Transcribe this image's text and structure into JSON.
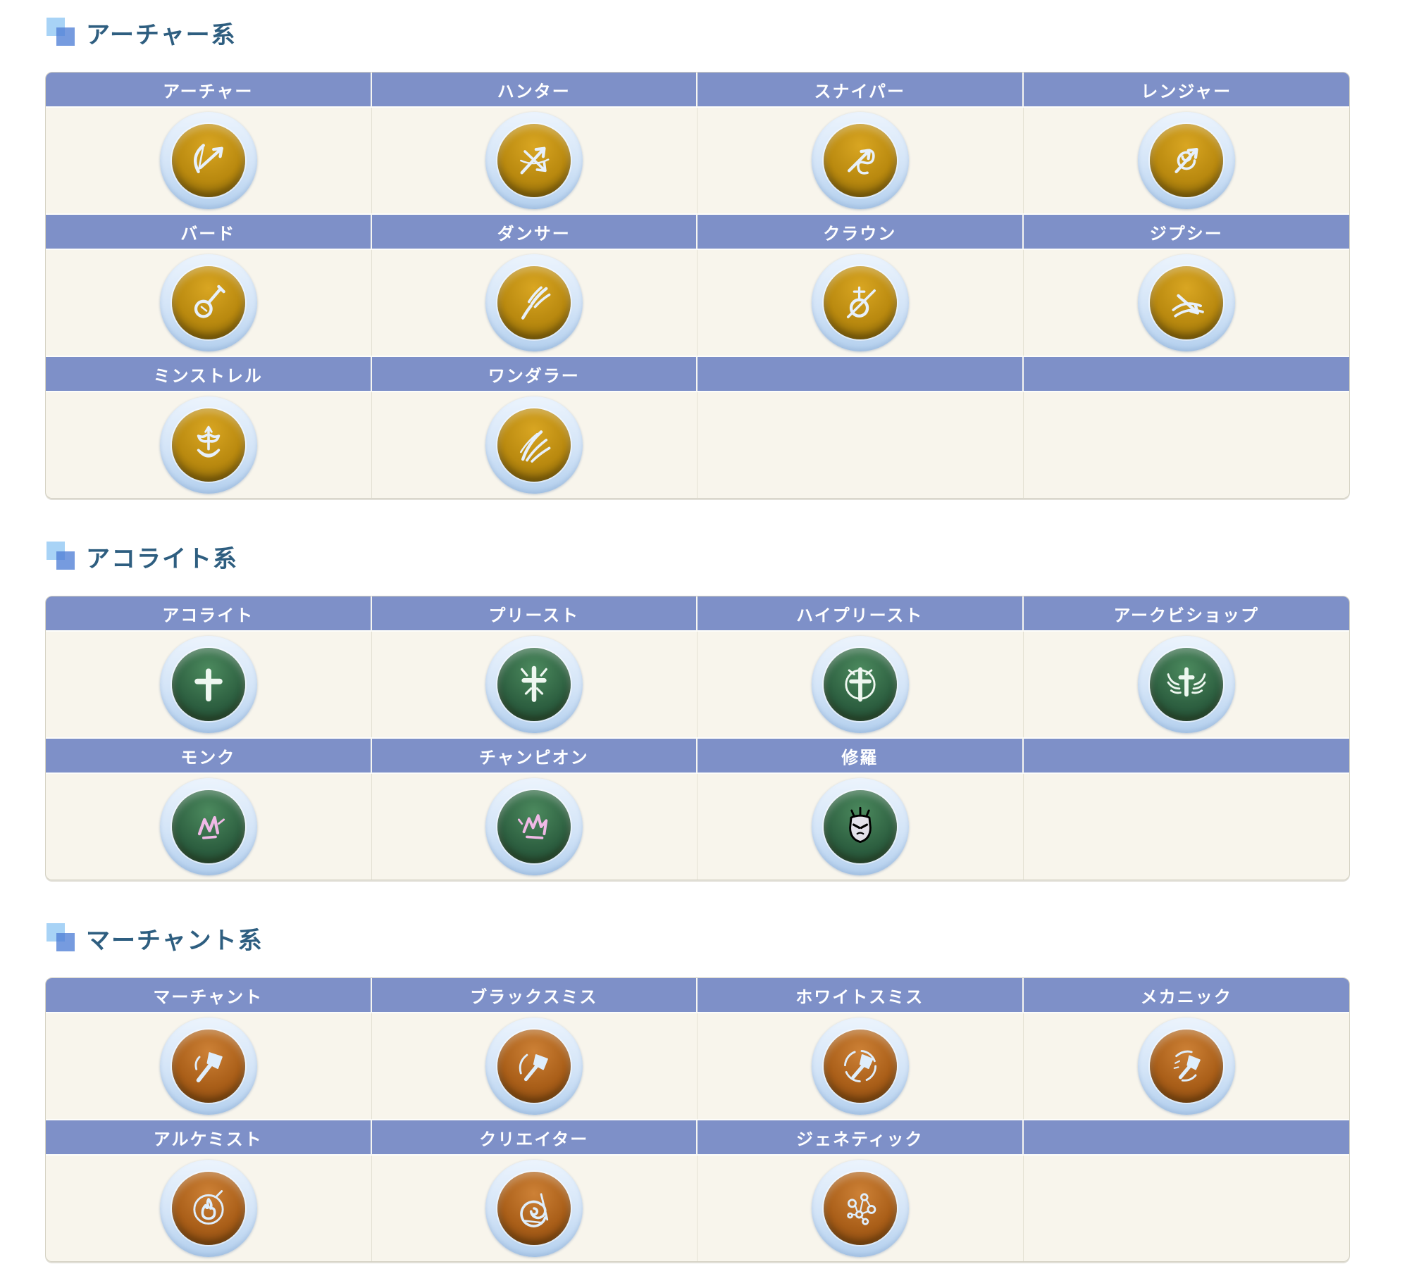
{
  "colors": {
    "page_bg": "#ffffff",
    "heading_text": "#2e5e80",
    "bullet_light": "#a8d3f6",
    "bullet_dark": "#4f7fd6",
    "header_bg": "#7e90c8",
    "header_text": "#ffffff",
    "cell_bg": "#f8f5ec",
    "cell_divider": "#e4e1d4",
    "table_border": "#d5d2c4",
    "ring_outer": "#b4d0ee",
    "ring_inner": "#ecf4fd",
    "palettes": {
      "gold": {
        "c1": "#d9a622",
        "c2": "#b9890f",
        "c3": "#7d5f08",
        "glyph": "#e7f0fb"
      },
      "green": {
        "c1": "#4c8a5e",
        "c2": "#2f6242",
        "c3": "#1d4730",
        "glyph": "#eef7f0"
      },
      "green-pink": {
        "c1": "#4c8a5e",
        "c2": "#2f6242",
        "c3": "#1d4730",
        "glyph": "#f0b9e6"
      },
      "green-purple": {
        "c1": "#4c8a5e",
        "c2": "#2f6242",
        "c3": "#1d4730",
        "glyph": "#b express05fd0"
      },
      "orange": {
        "c1": "#cd8136",
        "c2": "#aa5f19",
        "c3": "#7e430d",
        "glyph": "#dfeefc"
      }
    }
  },
  "sections": [
    {
      "id": "archer",
      "title": "アーチャー系",
      "rows": [
        [
          {
            "label": "アーチャー",
            "icon": "bow",
            "palette": "gold"
          },
          {
            "label": "ハンター",
            "icon": "crossed-arrows",
            "palette": "gold"
          },
          {
            "label": "スナイパー",
            "icon": "curl-bow",
            "palette": "gold"
          },
          {
            "label": "レンジャー",
            "icon": "spiral-bow",
            "palette": "gold"
          }
        ],
        [
          {
            "label": "バード",
            "icon": "lute",
            "palette": "gold"
          },
          {
            "label": "ダンサー",
            "icon": "whip-fan",
            "palette": "gold"
          },
          {
            "label": "クラウン",
            "icon": "needle-lute",
            "palette": "gold"
          },
          {
            "label": "ジプシー",
            "icon": "fan-arrows",
            "palette": "gold"
          }
        ],
        [
          {
            "label": "ミンストレル",
            "icon": "ornate-lyre",
            "palette": "gold"
          },
          {
            "label": "ワンダラー",
            "icon": "feather-fan",
            "palette": "gold"
          },
          {},
          {}
        ]
      ]
    },
    {
      "id": "acolyte",
      "title": "アコライト系",
      "rows": [
        [
          {
            "label": "アコライト",
            "icon": "cross",
            "palette": "green"
          },
          {
            "label": "プリースト",
            "icon": "flared-cross",
            "palette": "green"
          },
          {
            "label": "ハイプリースト",
            "icon": "ring-cross",
            "palette": "green"
          },
          {
            "label": "アークビショップ",
            "icon": "winged-cross",
            "palette": "green"
          }
        ],
        [
          {
            "label": "モンク",
            "icon": "fist-burst",
            "palette": "green-pink"
          },
          {
            "label": "チャンピオン",
            "icon": "shard-burst",
            "palette": "green-pink"
          },
          {
            "label": "修羅",
            "icon": "demon-mask",
            "palette": "green-purple"
          },
          {}
        ]
      ]
    },
    {
      "id": "merchant",
      "title": "マーチャント系",
      "rows": [
        [
          {
            "label": "マーチャント",
            "icon": "axe",
            "palette": "orange"
          },
          {
            "label": "ブラックスミス",
            "icon": "arc-axe",
            "palette": "orange"
          },
          {
            "label": "ホワイトスミス",
            "icon": "ring-axe",
            "palette": "orange"
          },
          {
            "label": "メカニック",
            "icon": "spark-axe",
            "palette": "orange"
          }
        ],
        [
          {
            "label": "アルケミスト",
            "icon": "flame-ring",
            "palette": "orange"
          },
          {
            "label": "クリエイター",
            "icon": "spiral-rune",
            "palette": "orange"
          },
          {
            "label": "ジェネティック",
            "icon": "molecule",
            "palette": "orange"
          },
          {}
        ]
      ]
    }
  ]
}
